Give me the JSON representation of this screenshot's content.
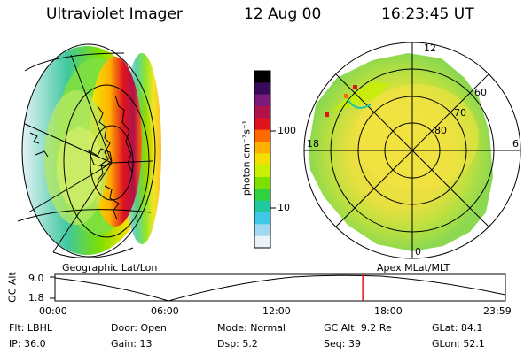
{
  "header": {
    "title": "Ultraviolet Imager",
    "date": "12 Aug 00",
    "time": "16:23:45 UT"
  },
  "left_panel": {
    "caption": "Geographic Lat/Lon"
  },
  "right_panel": {
    "caption": "Apex MLat/MLT",
    "mlt_labels": {
      "top": "12",
      "left": "18",
      "right": "6",
      "bottom": "0"
    },
    "lat_labels": [
      "60",
      "70",
      "80"
    ]
  },
  "colorbar": {
    "unit_label": "photon cm⁻²s⁻¹",
    "ticks": [
      "100",
      "10"
    ],
    "colors": [
      "#000000",
      "#3a0a5a",
      "#7a1a7a",
      "#b0124a",
      "#e0141e",
      "#ff6a00",
      "#ffb000",
      "#f2e000",
      "#c8f000",
      "#7de000",
      "#30d040",
      "#20c8a0",
      "#40c8e8",
      "#a0d8f0",
      "#e8f4f8"
    ]
  },
  "timeline": {
    "ylabel": "GC Alt",
    "y_ticks": [
      "9.0",
      "1.8"
    ],
    "x_ticks": [
      "00:00",
      "06:00",
      "12:00",
      "18:00",
      "23:59"
    ],
    "current_time_fraction": 0.6833
  },
  "status": {
    "row1": [
      {
        "label": "Flt:",
        "value": "LBHL"
      },
      {
        "label": "Door:",
        "value": "Open"
      },
      {
        "label": "Mode:",
        "value": "Normal"
      },
      {
        "label": "GC Alt:",
        "value": "9.2 Re"
      },
      {
        "label": "GLat:",
        "value": "84.1"
      }
    ],
    "row2": [
      {
        "label": "IP:",
        "value": "36.0"
      },
      {
        "label": "Gain:",
        "value": "13"
      },
      {
        "label": "Dsp:",
        "value": "5.2"
      },
      {
        "label": "Seq:",
        "value": "39"
      },
      {
        "label": "GLon:",
        "value": "52.1"
      }
    ]
  }
}
